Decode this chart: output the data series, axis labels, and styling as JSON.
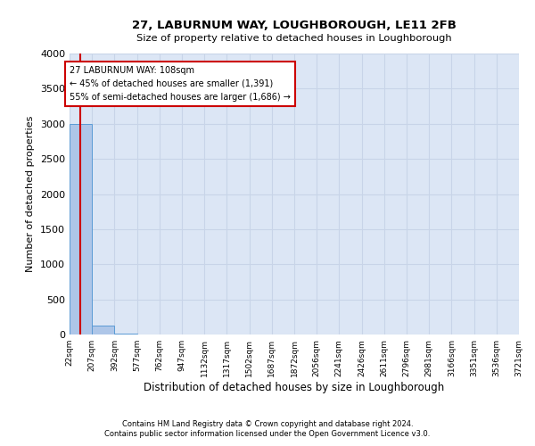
{
  "title": "27, LABURNUM WAY, LOUGHBOROUGH, LE11 2FB",
  "subtitle": "Size of property relative to detached houses in Loughborough",
  "xlabel": "Distribution of detached houses by size in Loughborough",
  "ylabel": "Number of detached properties",
  "footnote1": "Contains HM Land Registry data © Crown copyright and database right 2024.",
  "footnote2": "Contains public sector information licensed under the Open Government Licence v3.0.",
  "bin_edges": [
    22,
    207,
    392,
    577,
    762,
    947,
    1132,
    1317,
    1502,
    1687,
    1872,
    2056,
    2241,
    2426,
    2611,
    2796,
    2981,
    3166,
    3351,
    3536,
    3721
  ],
  "bar_heights": [
    3000,
    130,
    10,
    5,
    3,
    2,
    2,
    1,
    1,
    1,
    1,
    0,
    0,
    0,
    0,
    0,
    0,
    0,
    0,
    0
  ],
  "bar_color": "#aec6e8",
  "bar_edge_color": "#5b9bd5",
  "grid_color": "#c8d4e8",
  "background_color": "#dce6f5",
  "property_size": 108,
  "red_line_color": "#cc0000",
  "annotation_text": "27 LABURNUM WAY: 108sqm\n← 45% of detached houses are smaller (1,391)\n55% of semi-detached houses are larger (1,686) →",
  "annotation_box_color": "#cc0000",
  "ylim": [
    0,
    4000
  ],
  "yticks": [
    0,
    500,
    1000,
    1500,
    2000,
    2500,
    3000,
    3500,
    4000
  ]
}
